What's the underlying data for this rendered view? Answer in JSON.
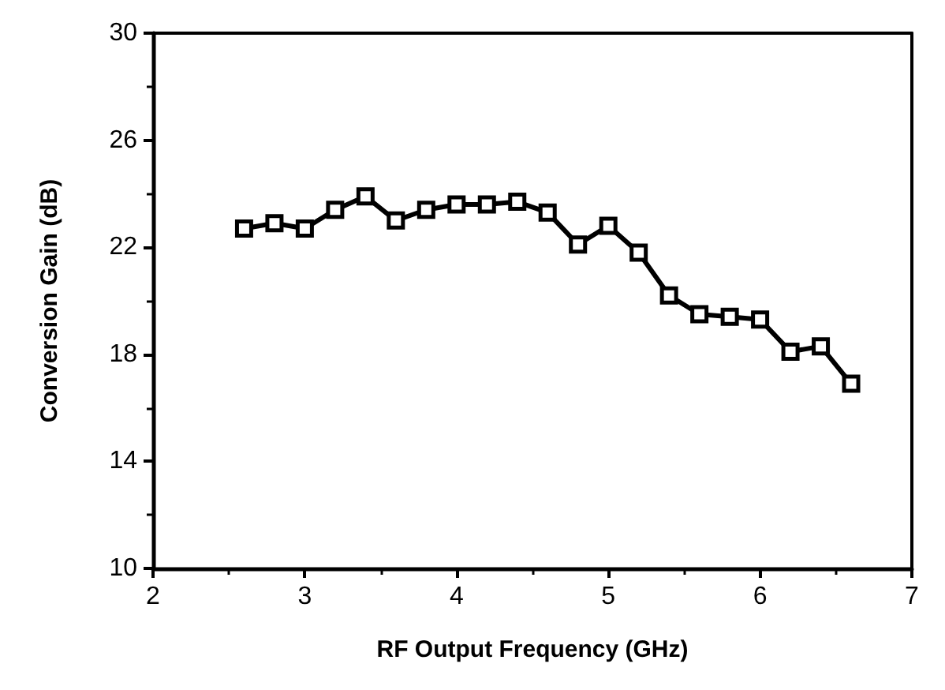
{
  "chart_data": {
    "type": "line",
    "xlabel": "RF Output Frequency (GHz)",
    "ylabel": "Conversion Gain (dB)",
    "x": [
      2.6,
      2.8,
      3.0,
      3.2,
      3.4,
      3.6,
      3.8,
      4.0,
      4.2,
      4.4,
      4.6,
      4.8,
      5.0,
      5.2,
      5.4,
      5.6,
      5.8,
      6.0,
      6.2,
      6.4,
      6.6
    ],
    "series": [
      {
        "color": "#000000",
        "values": [
          22.7,
          22.9,
          22.7,
          23.4,
          23.9,
          23.0,
          23.4,
          23.6,
          23.6,
          23.7,
          23.3,
          22.1,
          22.8,
          21.8,
          20.2,
          19.5,
          19.4,
          19.3,
          18.1,
          18.3,
          16.9
        ]
      }
    ],
    "xlim": [
      2,
      7
    ],
    "xticks": [
      2,
      3,
      4,
      5,
      6,
      7
    ],
    "ylim": [
      10,
      30
    ],
    "yticks": [
      10,
      14,
      18,
      22,
      26,
      30
    ],
    "marker": "square",
    "line_style": "solid"
  }
}
